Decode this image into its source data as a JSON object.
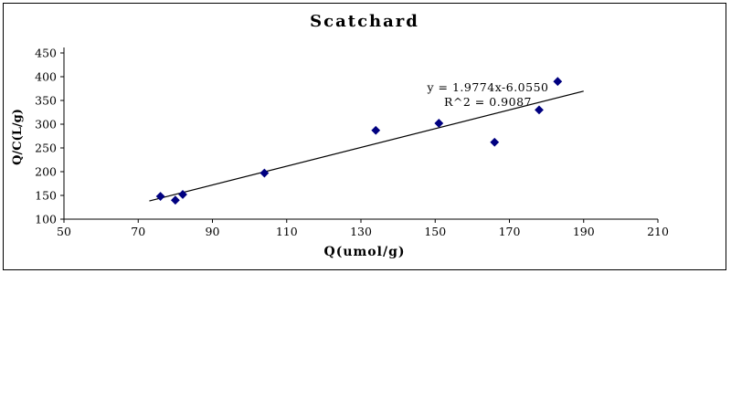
{
  "chart_data": {
    "type": "scatter",
    "title": "Scatchard",
    "xlabel": "Q(umol/g)",
    "ylabel": "Q/C(L/g)",
    "xlim": [
      50,
      210
    ],
    "ylim": [
      100,
      450
    ],
    "x_ticks": [
      50,
      70,
      90,
      110,
      130,
      150,
      170,
      190,
      210
    ],
    "y_ticks": [
      100,
      150,
      200,
      250,
      300,
      350,
      400,
      450
    ],
    "points": [
      [
        76,
        148
      ],
      [
        80,
        140
      ],
      [
        82,
        152
      ],
      [
        104,
        197
      ],
      [
        134,
        287
      ],
      [
        151,
        302
      ],
      [
        166,
        262
      ],
      [
        178,
        330
      ],
      [
        183,
        390
      ]
    ],
    "marker_color": "#000080",
    "grid": false,
    "legend": "none",
    "trendline": {
      "slope": 1.9774,
      "intercept": -6.055,
      "x_start": 73,
      "x_end": 190,
      "color": "#000000"
    },
    "annotation": {
      "line1": "y = 1.9774x-6.0550",
      "line2": "R^2 = 0.9087"
    }
  }
}
